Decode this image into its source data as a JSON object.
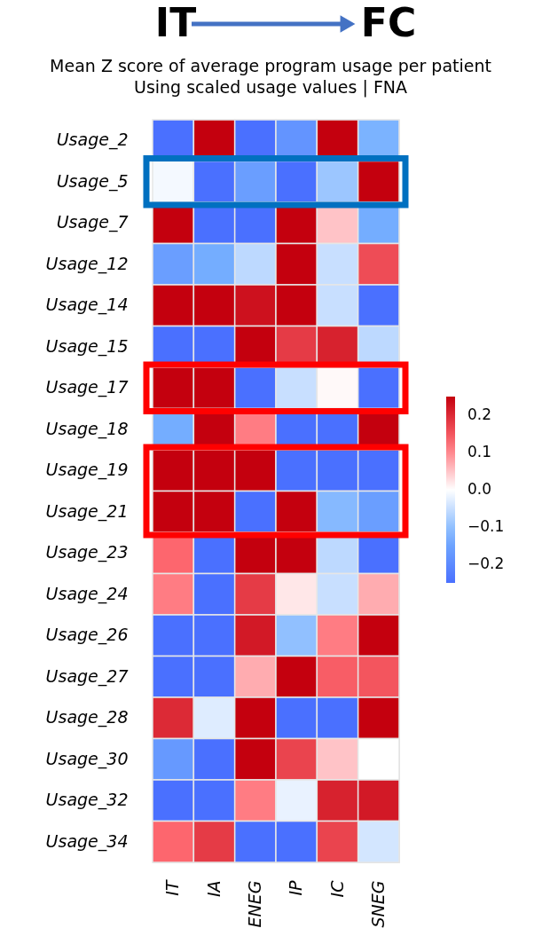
{
  "chart_data": {
    "type": "heatmap",
    "title": "Mean Z score of average program usage per patient",
    "subtitle": "Using scaled usage values | FNA",
    "annotations": [
      "IT",
      "FC"
    ],
    "categories": [
      "IT",
      "IA",
      "ENEG",
      "IP",
      "IC",
      "SNEG"
    ],
    "y_categories": [
      "Usage_2",
      "Usage_5",
      "Usage_7",
      "Usage_12",
      "Usage_14",
      "Usage_15",
      "Usage_17",
      "Usage_18",
      "Usage_19",
      "Usage_21",
      "Usage_23",
      "Usage_24",
      "Usage_26",
      "Usage_27",
      "Usage_28",
      "Usage_30",
      "Usage_32",
      "Usage_34"
    ],
    "cells": [
      [
        -0.25,
        0.25,
        -0.25,
        -0.18,
        0.25,
        -0.12
      ],
      [
        -0.01,
        -0.25,
        -0.16,
        -0.25,
        -0.09,
        0.25
      ],
      [
        0.25,
        -0.25,
        -0.25,
        0.25,
        0.05,
        -0.13
      ],
      [
        -0.16,
        -0.13,
        -0.06,
        0.25,
        -0.05,
        0.16
      ],
      [
        0.25,
        0.25,
        0.23,
        0.25,
        -0.05,
        -0.25
      ],
      [
        -0.25,
        -0.25,
        0.25,
        0.18,
        0.21,
        -0.06
      ],
      [
        0.25,
        0.25,
        -0.25,
        -0.05,
        0.005,
        -0.25
      ],
      [
        -0.13,
        0.25,
        0.11,
        -0.25,
        -0.25,
        0.25
      ],
      [
        0.25,
        0.25,
        0.25,
        -0.25,
        -0.25,
        -0.25
      ],
      [
        0.25,
        0.25,
        -0.25,
        0.25,
        -0.11,
        -0.16
      ],
      [
        0.13,
        -0.25,
        0.25,
        0.25,
        -0.06,
        -0.25
      ],
      [
        0.11,
        -0.25,
        0.18,
        0.02,
        -0.05,
        0.07
      ],
      [
        -0.25,
        -0.25,
        0.22,
        -0.1,
        0.11,
        0.25
      ],
      [
        -0.25,
        -0.25,
        0.07,
        0.25,
        0.14,
        0.15
      ],
      [
        0.2,
        -0.03,
        0.25,
        -0.25,
        -0.25,
        0.25
      ],
      [
        -0.17,
        -0.25,
        0.25,
        0.17,
        0.05,
        0.0
      ],
      [
        -0.25,
        -0.25,
        0.11,
        -0.02,
        0.21,
        0.22
      ],
      [
        0.13,
        0.18,
        -0.25,
        -0.25,
        0.17,
        -0.04
      ]
    ],
    "clim": [
      -0.25,
      0.25
    ],
    "cticks": [
      0.2,
      0.1,
      {
        "value": 0.0,
        "label": "0.0"
      },
      {
        "value": -0.1,
        "label": "−0.1"
      },
      {
        "value": -0.2,
        "label": "−0.2"
      }
    ]
  }
}
